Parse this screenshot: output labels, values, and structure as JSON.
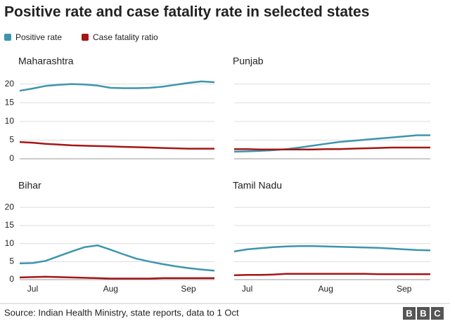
{
  "title": "Positive rate and case fatality rate in selected states",
  "legend": [
    {
      "name": "Positive rate",
      "color": "#3d95ad"
    },
    {
      "name": "Case fatality ratio",
      "color": "#a51616"
    }
  ],
  "categories": [
    null,
    "Jul",
    null,
    null,
    null,
    null,
    null,
    "Aug",
    null,
    null,
    null,
    null,
    null,
    "Sep",
    null,
    null
  ],
  "source": "Source: Indian Health Ministry, state reports, data to 1 Oct",
  "logo": [
    "B",
    "B",
    "C"
  ],
  "chart_data": [
    {
      "type": "line",
      "title": "Maharashtra",
      "ylim": [
        0,
        22
      ],
      "yticks": [
        0,
        5,
        10,
        15,
        20
      ],
      "grid": true,
      "series": [
        {
          "values": [
            18.2,
            18.8,
            19.5,
            19.8,
            20.0,
            19.9,
            19.6,
            19.0,
            18.9,
            18.9,
            19.0,
            19.3,
            19.8,
            20.3,
            20.7,
            20.5
          ]
        },
        {
          "values": [
            4.5,
            4.3,
            4.0,
            3.8,
            3.6,
            3.5,
            3.4,
            3.3,
            3.2,
            3.1,
            3.0,
            2.9,
            2.8,
            2.7,
            2.7,
            2.7
          ]
        }
      ]
    },
    {
      "type": "line",
      "title": "Punjab",
      "ylim": [
        0,
        22
      ],
      "yticks": [
        0,
        5,
        10,
        15,
        20
      ],
      "grid": true,
      "series": [
        {
          "values": [
            1.9,
            2.0,
            2.1,
            2.3,
            2.6,
            3.0,
            3.5,
            4.0,
            4.5,
            4.8,
            5.1,
            5.4,
            5.7,
            6.0,
            6.3,
            6.3
          ]
        },
        {
          "values": [
            2.6,
            2.6,
            2.5,
            2.5,
            2.5,
            2.5,
            2.5,
            2.6,
            2.6,
            2.7,
            2.8,
            2.9,
            3.0,
            3.0,
            3.0,
            3.0
          ]
        }
      ]
    },
    {
      "type": "line",
      "title": "Bihar",
      "ylim": [
        0,
        22
      ],
      "yticks": [
        0,
        5,
        10,
        15,
        20
      ],
      "grid": true,
      "series": [
        {
          "values": [
            4.5,
            4.6,
            5.2,
            6.5,
            7.8,
            9.0,
            9.5,
            8.3,
            7.0,
            5.8,
            5.0,
            4.3,
            3.7,
            3.2,
            2.8,
            2.5
          ]
        },
        {
          "values": [
            0.6,
            0.7,
            0.8,
            0.7,
            0.6,
            0.5,
            0.4,
            0.3,
            0.3,
            0.3,
            0.3,
            0.4,
            0.4,
            0.4,
            0.4,
            0.4
          ]
        }
      ]
    },
    {
      "type": "line",
      "title": "Tamil Nadu",
      "ylim": [
        0,
        22
      ],
      "yticks": [
        0,
        5,
        10,
        15,
        20
      ],
      "grid": true,
      "series": [
        {
          "values": [
            7.8,
            8.4,
            8.7,
            9.0,
            9.2,
            9.3,
            9.3,
            9.2,
            9.1,
            9.0,
            8.9,
            8.8,
            8.6,
            8.4,
            8.2,
            8.1
          ]
        },
        {
          "values": [
            1.2,
            1.3,
            1.3,
            1.4,
            1.6,
            1.6,
            1.6,
            1.6,
            1.6,
            1.6,
            1.6,
            1.5,
            1.5,
            1.5,
            1.5,
            1.5
          ]
        }
      ]
    }
  ]
}
